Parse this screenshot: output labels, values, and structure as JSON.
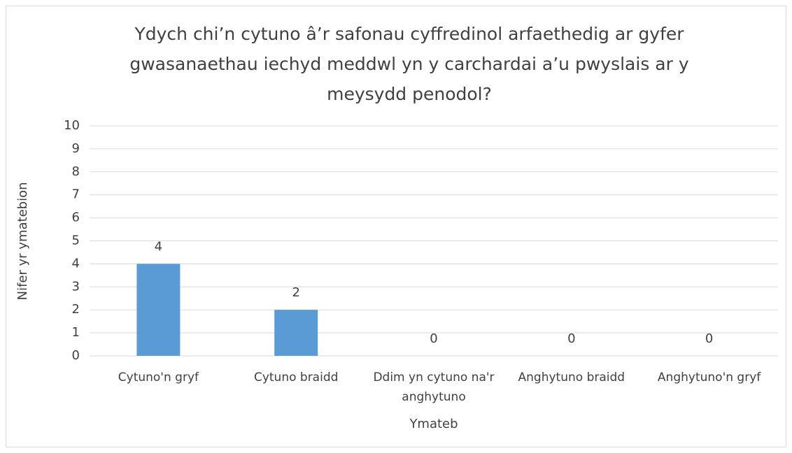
{
  "chart_data": {
    "type": "bar",
    "title": "Ydych chi’n cytuno â’r safonau cyffredinol arfaethedig ar gyfer gwasanaethau iechyd meddwl yn y carchardai a’u pwyslais ar y meysydd penodol?",
    "x_label": "Ymateb",
    "y_label": "Nifer yr ymatebion",
    "categories": [
      "Cytuno'n gryf",
      "Cytuno braidd",
      "Ddim yn cytuno na'r anghytuno",
      "Anghytuno braidd",
      "Anghytuno'n gryf"
    ],
    "values": [
      4,
      2,
      0,
      0,
      0
    ],
    "color": "#5b9bd5",
    "ylim": [
      0,
      10
    ],
    "yticks": [
      0,
      1,
      2,
      3,
      4,
      5,
      6,
      7,
      8,
      9,
      10
    ],
    "grid": true
  }
}
